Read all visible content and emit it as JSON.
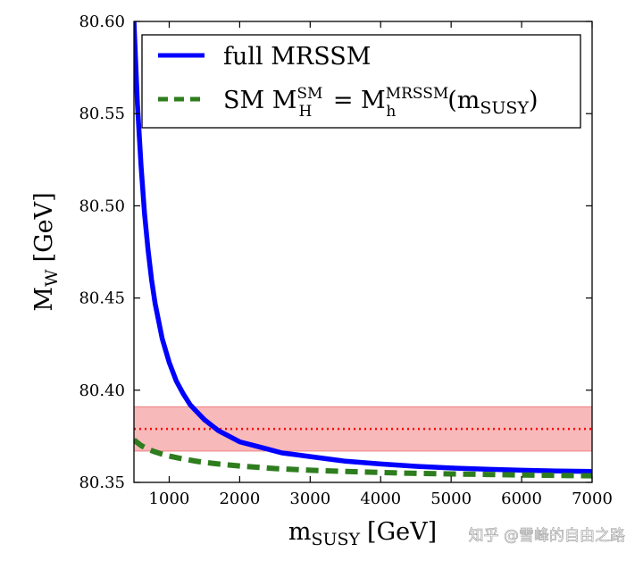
{
  "chart_data": {
    "type": "line",
    "xlabel": {
      "main": "m",
      "sub": "SUSY",
      "unit": "[GeV]"
    },
    "ylabel": {
      "main": "M",
      "sub": "W",
      "unit": "[GeV]"
    },
    "xlim": [
      500,
      7000
    ],
    "ylim": [
      80.35,
      80.6
    ],
    "xticks": [
      1000,
      2000,
      3000,
      4000,
      5000,
      6000,
      7000
    ],
    "yticks": [
      "80.35",
      "80.40",
      "80.45",
      "80.50",
      "80.55",
      "80.60"
    ],
    "series": [
      {
        "name": "full MRSSM",
        "style": "solid",
        "color": "#0000ff",
        "x": [
          500,
          550,
          600,
          650,
          700,
          750,
          800,
          900,
          1000,
          1100,
          1200,
          1300,
          1400,
          1500,
          1600,
          1700,
          1800,
          2000,
          2200,
          2400,
          2600,
          2800,
          3000,
          3500,
          4000,
          4500,
          5000,
          5500,
          6000,
          6500,
          7000
        ],
        "values": [
          80.6,
          80.555,
          80.522,
          80.496,
          80.476,
          80.46,
          80.447,
          80.428,
          80.415,
          80.405,
          80.398,
          80.392,
          80.388,
          80.384,
          80.381,
          80.378,
          80.376,
          80.372,
          80.37,
          80.368,
          80.366,
          80.365,
          80.364,
          80.3615,
          80.36,
          80.3587,
          80.3578,
          80.3571,
          80.3566,
          80.3562,
          80.3559
        ]
      },
      {
        "name": "SM",
        "style": "dashed",
        "color": "#2e7d1e",
        "x": [
          500,
          600,
          700,
          800,
          900,
          1000,
          1200,
          1400,
          1600,
          1800,
          2000,
          2500,
          3000,
          3500,
          4000,
          4500,
          5000,
          5500,
          6000,
          6500,
          7000
        ],
        "values": [
          80.373,
          80.37,
          80.368,
          80.3665,
          80.3653,
          80.3643,
          80.3627,
          80.3614,
          80.3604,
          80.3596,
          80.3589,
          80.3575,
          80.3566,
          80.3559,
          80.3554,
          80.3549,
          80.3546,
          80.3543,
          80.354,
          80.3538,
          80.3536
        ]
      }
    ],
    "band": {
      "ymin": 80.367,
      "ymax": 80.391,
      "center": 80.379,
      "color": "#f08080"
    },
    "legend": {
      "position": "top-right",
      "entries": [
        {
          "text": "full MRSSM"
        },
        {
          "text_prefix": "SM M",
          "sup1": "SM",
          "sub1": "H",
          "equals": " = M",
          "sup2": "MRSSM",
          "sub2": "h",
          "arg_open": "(m",
          "arg_sub": "SUSY",
          "arg_close": ")"
        }
      ]
    }
  },
  "watermark": "知乎 @雪峰的自由之路"
}
